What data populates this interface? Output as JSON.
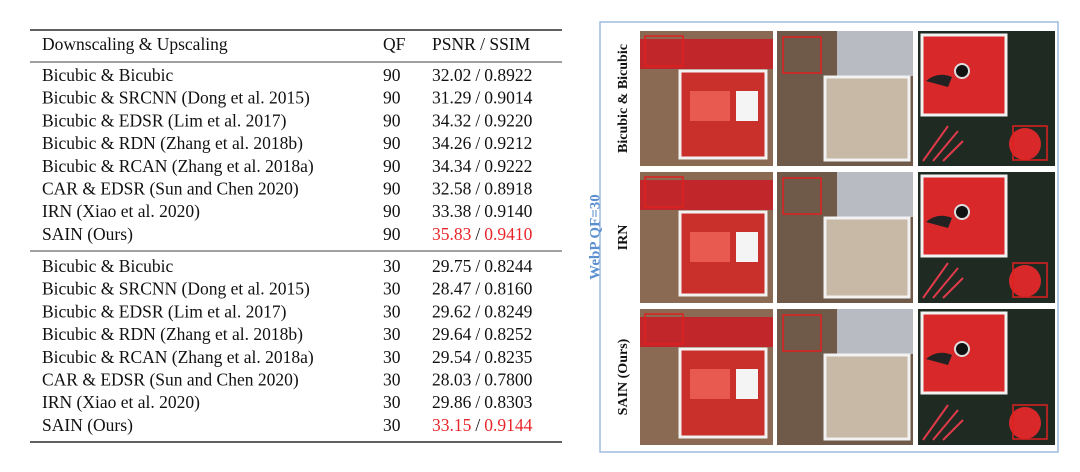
{
  "table": {
    "header": [
      "Downscaling & Upscaling",
      "QF",
      "PSNR / SSIM"
    ],
    "separator": "/",
    "best_color": "#e8262a",
    "groups": [
      [
        {
          "method": "Bicubic & Bicubic",
          "qf": 90,
          "psnr": "32.02",
          "ssim": "0.8922",
          "best": false
        },
        {
          "method": "Bicubic & SRCNN (Dong et al. 2015)",
          "qf": 90,
          "psnr": "31.29",
          "ssim": "0.9014",
          "best": false
        },
        {
          "method": "Bicubic & EDSR (Lim et al. 2017)",
          "qf": 90,
          "psnr": "34.32",
          "ssim": "0.9220",
          "best": false
        },
        {
          "method": "Bicubic & RDN (Zhang et al. 2018b)",
          "qf": 90,
          "psnr": "34.26",
          "ssim": "0.9212",
          "best": false
        },
        {
          "method": "Bicubic & RCAN (Zhang et al. 2018a)",
          "qf": 90,
          "psnr": "34.34",
          "ssim": "0.9222",
          "best": false
        },
        {
          "method": "CAR & EDSR (Sun and Chen 2020)",
          "qf": 90,
          "psnr": "32.58",
          "ssim": "0.8918",
          "best": false
        },
        {
          "method": "IRN (Xiao et al. 2020)",
          "qf": 90,
          "psnr": "33.38",
          "ssim": "0.9140",
          "best": false
        },
        {
          "method": "SAIN (Ours)",
          "qf": 90,
          "psnr": "35.83",
          "ssim": "0.9410",
          "best": true
        }
      ],
      [
        {
          "method": "Bicubic & Bicubic",
          "qf": 30,
          "psnr": "29.75",
          "ssim": "0.8244",
          "best": false
        },
        {
          "method": "Bicubic & SRCNN (Dong et al. 2015)",
          "qf": 30,
          "psnr": "28.47",
          "ssim": "0.8160",
          "best": false
        },
        {
          "method": "Bicubic & EDSR (Lim et al. 2017)",
          "qf": 30,
          "psnr": "29.62",
          "ssim": "0.8249",
          "best": false
        },
        {
          "method": "Bicubic & RDN (Zhang et al. 2018b)",
          "qf": 30,
          "psnr": "29.64",
          "ssim": "0.8252",
          "best": false
        },
        {
          "method": "Bicubic & RCAN (Zhang et al. 2018a)",
          "qf": 30,
          "psnr": "29.54",
          "ssim": "0.8235",
          "best": false
        },
        {
          "method": "CAR & EDSR (Sun and Chen 2020)",
          "qf": 30,
          "psnr": "28.03",
          "ssim": "0.7800",
          "best": false
        },
        {
          "method": "IRN (Xiao et al. 2020)",
          "qf": 30,
          "psnr": "29.86",
          "ssim": "0.8303",
          "best": false
        },
        {
          "method": "SAIN (Ours)",
          "qf": 30,
          "psnr": "33.15",
          "ssim": "0.9144",
          "best": true
        }
      ]
    ]
  },
  "figure": {
    "side_label": "WebP QF=30",
    "row_labels": [
      "Bicubic & Bicubic",
      "IRN",
      "SAIN (Ours)"
    ]
  }
}
